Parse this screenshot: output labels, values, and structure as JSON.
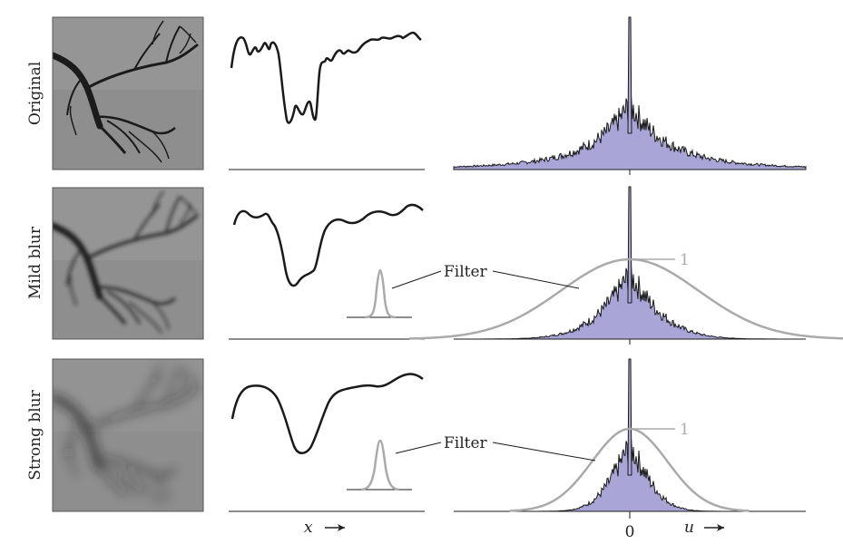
{
  "rows": [
    {
      "label": "Original",
      "blur": 0
    },
    {
      "label": "Mild blur",
      "blur": 2
    },
    {
      "label": "Strong blur",
      "blur": 6
    }
  ],
  "filter_label": "Filter",
  "filter_peak_label": "1",
  "x_axis_label": "x",
  "u_axis_label": "u",
  "zero_label": "0",
  "colors": {
    "signal": "#1a1a1a",
    "spectrum_fill": "#a9a5d6",
    "spectrum_stroke": "#1a1a1a",
    "filter": "#aaaaaa",
    "image_bg": "#8a8a8a",
    "branch": "#1b1b1b"
  }
}
